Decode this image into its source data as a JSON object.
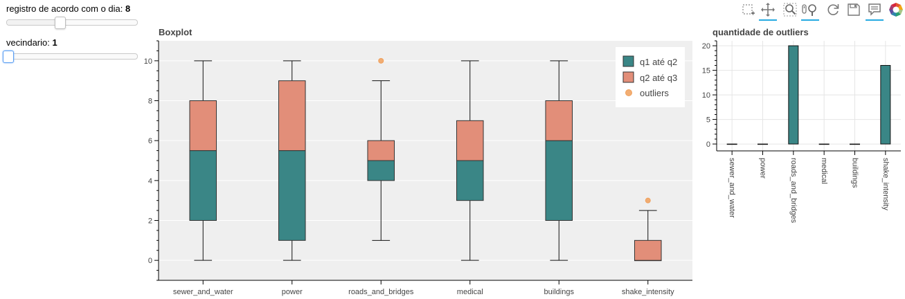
{
  "widgets": {
    "slider_day": {
      "label": "registro de acordo com o dia: ",
      "value": "8",
      "fraction": 0.41
    },
    "slider_neighborhood": {
      "label": "vecindario: ",
      "value": "1",
      "fraction": 0.0
    }
  },
  "toolbar": {
    "tools": [
      {
        "name": "box-select-tool-icon",
        "active": false
      },
      {
        "name": "pan-tool-icon",
        "active": true
      },
      {
        "name": "zoom-tool-icon",
        "active": false
      },
      {
        "name": "wheel-zoom-tool-icon",
        "active": true
      },
      {
        "name": "reset-tool-icon",
        "active": false
      },
      {
        "name": "save-tool-icon",
        "active": false
      },
      {
        "name": "hover-tool-icon",
        "active": true
      },
      {
        "name": "bokeh-logo-icon",
        "active": false
      }
    ]
  },
  "chart_data": [
    {
      "type": "box",
      "title": "Boxplot",
      "categories": [
        "sewer_and_water",
        "power",
        "roads_and_bridges",
        "medical",
        "buildings",
        "shake_intensity"
      ],
      "boxes": [
        {
          "lower": 0,
          "q1": 2,
          "q2": 5.5,
          "q3": 8,
          "upper": 10
        },
        {
          "lower": 0,
          "q1": 1,
          "q2": 5.5,
          "q3": 9,
          "upper": 10
        },
        {
          "lower": 1,
          "q1": 4,
          "q2": 5,
          "q3": 6,
          "upper": 9
        },
        {
          "lower": 0,
          "q1": 3,
          "q2": 5,
          "q3": 7,
          "upper": 10
        },
        {
          "lower": 0,
          "q1": 2,
          "q2": 6,
          "q3": 8,
          "upper": 10
        },
        {
          "lower": 0,
          "q1": 0,
          "q2": 0,
          "q3": 1,
          "upper": 2.5
        }
      ],
      "outliers": [
        {
          "category": "roads_and_bridges",
          "value": 10
        },
        {
          "category": "shake_intensity",
          "value": 3
        }
      ],
      "ylim": [
        -1,
        11
      ],
      "yticks": [
        0,
        2,
        4,
        6,
        8,
        10
      ],
      "grid": true,
      "legend_position": "top-right",
      "legend": [
        "q1 até q2",
        "q2 até q3",
        "outliers"
      ],
      "colors": {
        "lower_box": "#3a8686",
        "upper_box": "#e28e79",
        "outlier": "#f0a05c",
        "background": "#efefef"
      }
    },
    {
      "type": "bar",
      "title": "quantidade de outliers",
      "categories": [
        "sewer_and_water",
        "power",
        "roads_and_bridges",
        "medical",
        "buildings",
        "shake_intensity"
      ],
      "values": [
        0,
        0,
        20,
        0,
        0,
        16
      ],
      "ylim": [
        -1.4,
        21
      ],
      "yticks": [
        0,
        5,
        10,
        15,
        20
      ],
      "grid": true,
      "colors": {
        "bar": "#3a8686"
      }
    }
  ]
}
